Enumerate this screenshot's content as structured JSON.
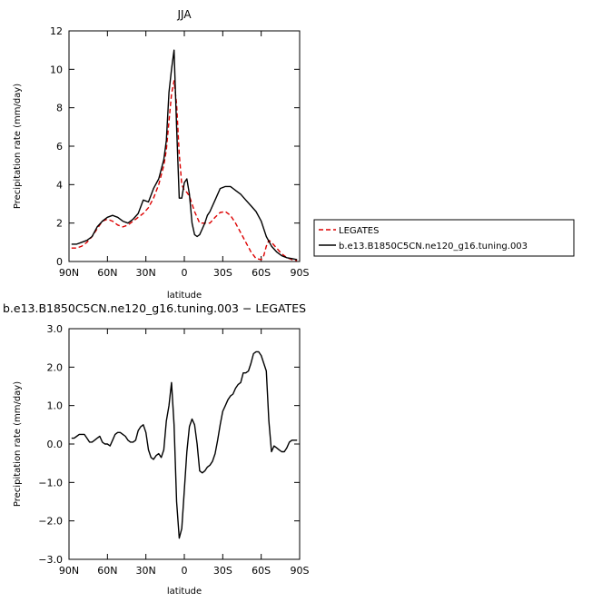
{
  "chart_data": [
    {
      "type": "line",
      "title": "JJA",
      "xlabel": "latitude",
      "ylabel": "Precipitation rate  (mm/day)",
      "x_axis": "latitude, 90 (90N) to -90 (90S)",
      "xlim": [
        90,
        -90
      ],
      "ylim": [
        0,
        12
      ],
      "xticks": [
        {
          "value": 90,
          "label": "90N"
        },
        {
          "value": 60,
          "label": "60N"
        },
        {
          "value": 30,
          "label": "30N"
        },
        {
          "value": 0,
          "label": "0"
        },
        {
          "value": -30,
          "label": "30S"
        },
        {
          "value": -60,
          "label": "60S"
        },
        {
          "value": -90,
          "label": "90S"
        }
      ],
      "yticks": [
        {
          "value": 0,
          "label": "0"
        },
        {
          "value": 2,
          "label": "2"
        },
        {
          "value": 4,
          "label": "4"
        },
        {
          "value": 6,
          "label": "6"
        },
        {
          "value": 8,
          "label": "8"
        },
        {
          "value": 10,
          "label": "10"
        },
        {
          "value": 12,
          "label": "12"
        }
      ],
      "grid": false,
      "legend": "right of plot",
      "series": [
        {
          "name": "LEGATES",
          "color": "#dd0000",
          "dash": "dashed",
          "x": [
            88,
            84,
            80,
            76,
            72,
            68,
            64,
            60,
            56,
            52,
            48,
            44,
            40,
            36,
            32,
            28,
            24,
            20,
            16,
            14,
            12,
            10,
            8,
            6,
            4,
            2,
            0,
            -2,
            -4,
            -8,
            -12,
            -16,
            -20,
            -24,
            -28,
            -32,
            -36,
            -40,
            -44,
            -48,
            -52,
            -56,
            -60,
            -62,
            -64,
            -66,
            -68,
            -72,
            -76,
            -80,
            -84,
            -88
          ],
          "y": [
            0.7,
            0.7,
            0.8,
            1.0,
            1.3,
            1.7,
            2.1,
            2.2,
            2.1,
            1.9,
            1.8,
            1.9,
            2.1,
            2.3,
            2.5,
            2.8,
            3.3,
            4.0,
            5.0,
            5.8,
            7.3,
            8.7,
            9.4,
            8.2,
            5.6,
            4.0,
            3.7,
            3.6,
            3.4,
            2.6,
            2.0,
            2.0,
            2.0,
            2.3,
            2.55,
            2.6,
            2.4,
            2.0,
            1.5,
            1.0,
            0.5,
            0.15,
            0.1,
            0.3,
            0.8,
            1.1,
            1.0,
            0.7,
            0.4,
            0.2,
            0.1,
            0.05
          ]
        },
        {
          "name": "b.e13.B1850C5CN.ne120_g16.tuning.003",
          "color": "#000000",
          "dash": "solid",
          "x": [
            88,
            84,
            80,
            76,
            72,
            68,
            64,
            60,
            56,
            52,
            48,
            44,
            40,
            36,
            32,
            28,
            24,
            20,
            16,
            14,
            12,
            10,
            8,
            6,
            4,
            2,
            0,
            -2,
            -4,
            -6,
            -8,
            -10,
            -12,
            -14,
            -16,
            -18,
            -20,
            -24,
            -28,
            -32,
            -36,
            -40,
            -44,
            -48,
            -52,
            -56,
            -60,
            -64,
            -68,
            -72,
            -76,
            -80,
            -84,
            -88
          ],
          "y": [
            0.9,
            0.9,
            1.0,
            1.1,
            1.3,
            1.8,
            2.1,
            2.3,
            2.4,
            2.3,
            2.1,
            2.0,
            2.2,
            2.5,
            3.2,
            3.1,
            3.8,
            4.3,
            5.3,
            6.3,
            8.8,
            10.0,
            11.0,
            7.0,
            3.3,
            3.3,
            4.1,
            4.3,
            3.5,
            2.0,
            1.4,
            1.3,
            1.4,
            1.7,
            2.0,
            2.4,
            2.6,
            3.2,
            3.8,
            3.9,
            3.9,
            3.7,
            3.5,
            3.2,
            2.9,
            2.6,
            2.1,
            1.3,
            0.8,
            0.5,
            0.3,
            0.2,
            0.15,
            0.1
          ]
        }
      ]
    },
    {
      "type": "line",
      "title": "b.e13.B1850C5CN.ne120_g16.tuning.003 − LEGATES",
      "xlabel": "latitude",
      "ylabel": "Precipitation rate  (mm/day)",
      "x_axis": "latitude, 90 (90N) to -90 (90S)",
      "xlim": [
        90,
        -90
      ],
      "ylim": [
        -3.0,
        3.0
      ],
      "xticks": [
        {
          "value": 90,
          "label": "90N"
        },
        {
          "value": 60,
          "label": "60N"
        },
        {
          "value": 30,
          "label": "30N"
        },
        {
          "value": 0,
          "label": "0"
        },
        {
          "value": -30,
          "label": "30S"
        },
        {
          "value": -60,
          "label": "60S"
        },
        {
          "value": -90,
          "label": "90S"
        }
      ],
      "yticks": [
        {
          "value": -3.0,
          "label": "−3.0"
        },
        {
          "value": -2.0,
          "label": "−2.0"
        },
        {
          "value": -1.0,
          "label": "−1.0"
        },
        {
          "value": 0.0,
          "label": "0.0"
        },
        {
          "value": 1.0,
          "label": "1.0"
        },
        {
          "value": 2.0,
          "label": "2.0"
        },
        {
          "value": 3.0,
          "label": "3.0"
        }
      ],
      "grid": false,
      "series": [
        {
          "color": "#000000",
          "dash": "solid",
          "x": [
            88,
            86,
            84,
            82,
            80,
            78,
            76,
            74,
            72,
            70,
            68,
            66,
            64,
            62,
            60,
            58,
            56,
            54,
            52,
            50,
            48,
            46,
            44,
            42,
            40,
            38,
            36,
            34,
            32,
            30,
            28,
            26,
            24,
            22,
            20,
            18,
            16,
            14,
            12,
            10,
            8,
            6,
            4,
            2,
            0,
            -2,
            -4,
            -6,
            -8,
            -10,
            -12,
            -14,
            -16,
            -18,
            -20,
            -22,
            -24,
            -26,
            -28,
            -30,
            -32,
            -34,
            -36,
            -38,
            -40,
            -42,
            -44,
            -46,
            -48,
            -50,
            -52,
            -54,
            -56,
            -58,
            -60,
            -62,
            -64,
            -66,
            -68,
            -70,
            -72,
            -74,
            -76,
            -78,
            -80,
            -82,
            -84,
            -86,
            -88
          ],
          "y": [
            0.15,
            0.15,
            0.2,
            0.25,
            0.25,
            0.25,
            0.15,
            0.05,
            0.05,
            0.1,
            0.15,
            0.2,
            0.05,
            0.0,
            0.0,
            -0.05,
            0.1,
            0.25,
            0.3,
            0.3,
            0.25,
            0.2,
            0.1,
            0.05,
            0.05,
            0.1,
            0.35,
            0.45,
            0.5,
            0.3,
            -0.15,
            -0.35,
            -0.4,
            -0.3,
            -0.25,
            -0.35,
            -0.15,
            0.6,
            1.0,
            1.6,
            0.5,
            -1.5,
            -2.45,
            -2.2,
            -1.2,
            -0.2,
            0.45,
            0.65,
            0.5,
            0.0,
            -0.7,
            -0.75,
            -0.7,
            -0.6,
            -0.55,
            -0.45,
            -0.25,
            0.1,
            0.5,
            0.85,
            1.0,
            1.15,
            1.25,
            1.3,
            1.45,
            1.55,
            1.6,
            1.85,
            1.85,
            1.9,
            2.1,
            2.35,
            2.4,
            2.4,
            2.3,
            2.1,
            1.9,
            0.6,
            -0.2,
            -0.05,
            -0.1,
            -0.15,
            -0.2,
            -0.2,
            -0.1,
            0.05,
            0.1,
            0.1,
            0.1
          ]
        }
      ]
    }
  ]
}
